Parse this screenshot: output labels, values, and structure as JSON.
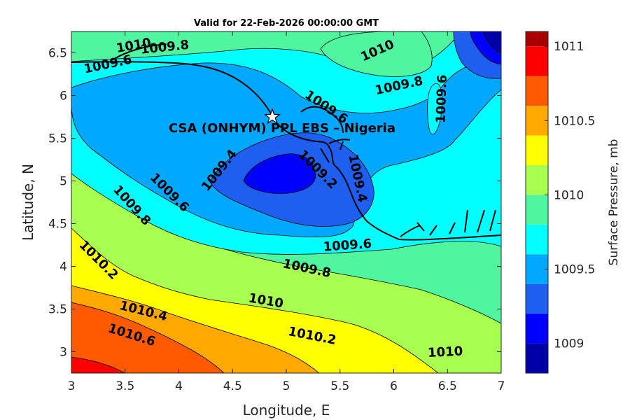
{
  "map": {
    "title": "Valid for 22-Feb-2026 00:00:00 GMT",
    "xlabel": "Longitude, E",
    "ylabel": "Latitude, N",
    "xlim": [
      3,
      7
    ],
    "ylim": [
      2.75,
      6.75
    ],
    "x_ticks": [
      "3",
      "3.5",
      "4",
      "4.5",
      "5",
      "5.5",
      "6",
      "6.5",
      "7"
    ],
    "y_ticks": [
      "3",
      "3.5",
      "4",
      "4.5",
      "5",
      "5.5",
      "6",
      "6.5"
    ],
    "station_label": "CSA (ONHYM) PPL EBS – Nigeria",
    "station_lon": 4.87,
    "station_lat": 5.75
  },
  "colorbar": {
    "label": "Surface Pressure, mb",
    "ticks": [
      "1009",
      "1009.5",
      "1010",
      "1010.5",
      "1011"
    ],
    "tick_values": [
      1009,
      1009.5,
      1010,
      1010.5,
      1011
    ],
    "range": [
      1008.8,
      1011.1
    ],
    "levels": [
      1008.8,
      1009.0,
      1009.2,
      1009.4,
      1009.6,
      1009.8,
      1010.0,
      1010.2,
      1010.4,
      1010.6,
      1010.8,
      1011.0,
      1011.1
    ],
    "colors": [
      "#0000a8",
      "#0000ff",
      "#1e5ff0",
      "#00a8ff",
      "#00ffff",
      "#50f5a0",
      "#a8ff50",
      "#ffff00",
      "#ffa800",
      "#ff5a00",
      "#ff0000",
      "#a80000"
    ]
  },
  "contour_labels": [
    {
      "text": "1010",
      "lon": 3.58,
      "lat": 6.58,
      "angle": -10
    },
    {
      "text": "1009.8",
      "lon": 3.87,
      "lat": 6.56,
      "angle": -6
    },
    {
      "text": "1009.6",
      "lon": 3.34,
      "lat": 6.36,
      "angle": -12
    },
    {
      "text": "1010",
      "lon": 5.85,
      "lat": 6.52,
      "angle": -24
    },
    {
      "text": "1009.8",
      "lon": 6.05,
      "lat": 6.11,
      "angle": -12
    },
    {
      "text": "1009.6",
      "lon": 6.45,
      "lat": 5.96,
      "angle": -88
    },
    {
      "text": "1009.6",
      "lon": 5.37,
      "lat": 5.86,
      "angle": 34
    },
    {
      "text": "1009.4",
      "lon": 4.38,
      "lat": 5.12,
      "angle": -52
    },
    {
      "text": "1009.2",
      "lon": 5.29,
      "lat": 5.13,
      "angle": 45
    },
    {
      "text": "1009.4",
      "lon": 5.66,
      "lat": 5.03,
      "angle": 78
    },
    {
      "text": "1009.6",
      "lon": 3.91,
      "lat": 4.86,
      "angle": 45
    },
    {
      "text": "1009.8",
      "lon": 3.56,
      "lat": 4.71,
      "angle": 48
    },
    {
      "text": "1009.6",
      "lon": 5.57,
      "lat": 4.24,
      "angle": -4
    },
    {
      "text": "1009.8",
      "lon": 5.19,
      "lat": 3.97,
      "angle": 12
    },
    {
      "text": "1010.2",
      "lon": 3.25,
      "lat": 4.07,
      "angle": 45
    },
    {
      "text": "1010",
      "lon": 4.81,
      "lat": 3.59,
      "angle": 10
    },
    {
      "text": "1010.4",
      "lon": 3.67,
      "lat": 3.47,
      "angle": 14
    },
    {
      "text": "1010.2",
      "lon": 5.24,
      "lat": 3.18,
      "angle": 11
    },
    {
      "text": "1010.6",
      "lon": 3.56,
      "lat": 3.19,
      "angle": 17
    },
    {
      "text": "1010",
      "lon": 6.48,
      "lat": 2.99,
      "angle": -3
    }
  ]
}
